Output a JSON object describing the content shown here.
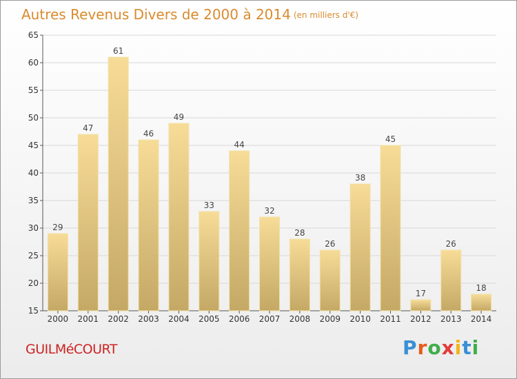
{
  "header": {
    "title": "Autres Revenus Divers de 2000 à 2014",
    "unit": "(en milliers d'€)"
  },
  "footer": {
    "town": "GUILMéCOURT",
    "brand": {
      "letters": [
        "P",
        "r",
        "o",
        "x",
        "i",
        "t",
        "i"
      ],
      "colors": [
        "#3a8fd6",
        "#e85a1a",
        "#3fae49",
        "#e23b3b",
        "#f0b51c",
        "#3a8fd6",
        "#3fae49"
      ]
    }
  },
  "colors": {
    "title": "#d98b2e",
    "bar_top": "#f7dc98",
    "bar_bottom": "#c4a865",
    "bar_edge": "#f2e2a6",
    "grid": "#d8d8d8",
    "town": "#cc2222"
  },
  "chart_data": {
    "type": "bar",
    "categories": [
      "2000",
      "2001",
      "2002",
      "2003",
      "2004",
      "2005",
      "2006",
      "2007",
      "2008",
      "2009",
      "2010",
      "2011",
      "2012",
      "2013",
      "2014"
    ],
    "values": [
      29,
      47,
      61,
      46,
      49,
      33,
      44,
      32,
      28,
      26,
      38,
      45,
      17,
      26,
      18
    ],
    "title": "Autres Revenus Divers de 2000 à 2014",
    "subtitle": "(en milliers d'€)",
    "xlabel": "",
    "ylabel": "",
    "ylim": [
      15,
      65
    ],
    "yticks": [
      15,
      20,
      25,
      30,
      35,
      40,
      45,
      50,
      55,
      60,
      65
    ],
    "grid": true,
    "data_labels": true
  }
}
